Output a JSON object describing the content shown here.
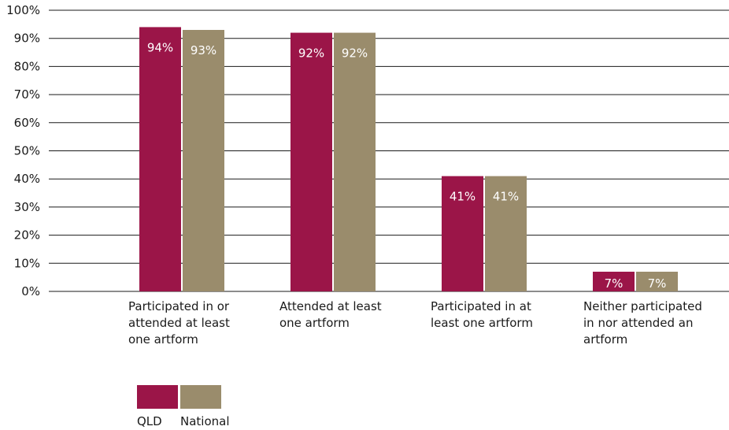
{
  "chart_data": {
    "type": "bar",
    "categories": [
      "Participated in or\nattended at least\none artform",
      "Attended at least\none artform",
      "Participated in at\nleast one artform",
      "Neither participated\nin nor attended an\nartform"
    ],
    "series": [
      {
        "name": "QLD",
        "values": [
          94,
          92,
          41,
          7
        ],
        "labels": [
          "94%",
          "92%",
          "41%",
          "7%"
        ],
        "color": "#9b1548"
      },
      {
        "name": "National",
        "values": [
          93,
          92,
          41,
          7
        ],
        "labels": [
          "93%",
          "92%",
          "41%",
          "7%"
        ],
        "color": "#9a8c6c"
      }
    ],
    "yticks": [
      "0%",
      "10%",
      "20%",
      "30%",
      "40%",
      "50%",
      "60%",
      "70%",
      "80%",
      "90%",
      "100%"
    ],
    "ylim": [
      0,
      100
    ],
    "title": "",
    "xlabel": "",
    "ylabel": "",
    "grid": true,
    "legend_position": "bottom-left"
  }
}
